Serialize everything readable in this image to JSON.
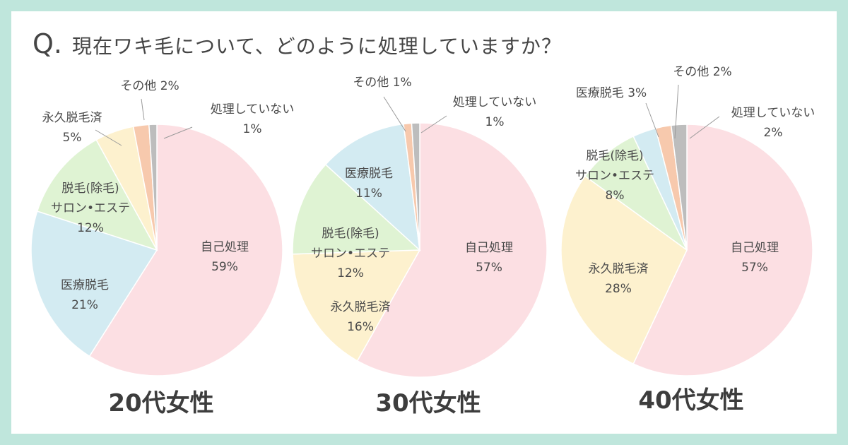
{
  "question": {
    "prefix": "Q.",
    "text": "現在ワキ毛について、どのように処理していますか？"
  },
  "chart_data": [
    {
      "type": "pie",
      "title": "20代女性",
      "slices": [
        {
          "label": [
            "自己処理"
          ],
          "value": 59,
          "display": "59%",
          "color": "#fcdfe3"
        },
        {
          "label": [
            "医療脱毛"
          ],
          "value": 21,
          "display": "21%",
          "color": "#d3ebf2"
        },
        {
          "label": [
            "脱毛(除毛)",
            "サロン•エステ"
          ],
          "value": 12,
          "display": "12%",
          "color": "#dff3d3"
        },
        {
          "label": [
            "永久脱毛済"
          ],
          "value": 5,
          "display": "5%",
          "color": "#fdf1ce"
        },
        {
          "label": [
            "その他"
          ],
          "value": 2,
          "display": "2%",
          "color": "#f7c9ad"
        },
        {
          "label": [
            "処理していない"
          ],
          "value": 1,
          "display": "1%",
          "color": "#bdbdbd"
        }
      ]
    },
    {
      "type": "pie",
      "title": "30代女性",
      "slices": [
        {
          "label": [
            "自己処理"
          ],
          "value": 57,
          "display": "57%",
          "color": "#fcdfe3"
        },
        {
          "label": [
            "永久脱毛済"
          ],
          "value": 16,
          "display": "16%",
          "color": "#fdf1ce"
        },
        {
          "label": [
            "脱毛(除毛)",
            "サロン•エステ"
          ],
          "value": 12,
          "display": "12%",
          "color": "#dff3d3"
        },
        {
          "label": [
            "医療脱毛"
          ],
          "value": 11,
          "display": "11%",
          "color": "#d3ebf2"
        },
        {
          "label": [
            "その他"
          ],
          "value": 1,
          "display": "1%",
          "color": "#f7c9ad"
        },
        {
          "label": [
            "処理していない"
          ],
          "value": 1,
          "display": "1%",
          "color": "#bdbdbd"
        }
      ]
    },
    {
      "type": "pie",
      "title": "40代女性",
      "slices": [
        {
          "label": [
            "自己処理"
          ],
          "value": 57,
          "display": "57%",
          "color": "#fcdfe3"
        },
        {
          "label": [
            "永久脱毛済"
          ],
          "value": 28,
          "display": "28%",
          "color": "#fdf1ce"
        },
        {
          "label": [
            "脱毛(除毛)",
            "サロン•エステ"
          ],
          "value": 8,
          "display": "8%",
          "color": "#dff3d3"
        },
        {
          "label": [
            "医療脱毛"
          ],
          "value": 3,
          "display": "3%",
          "color": "#d3ebf2"
        },
        {
          "label": [
            "その他"
          ],
          "value": 2,
          "display": "2%",
          "color": "#f7c9ad"
        },
        {
          "label": [
            "処理していない"
          ],
          "value": 2,
          "display": "2%",
          "color": "#bdbdbd"
        }
      ]
    }
  ],
  "colors": {
    "frame": "#bfe6dc",
    "text": "#4a4a4a"
  }
}
